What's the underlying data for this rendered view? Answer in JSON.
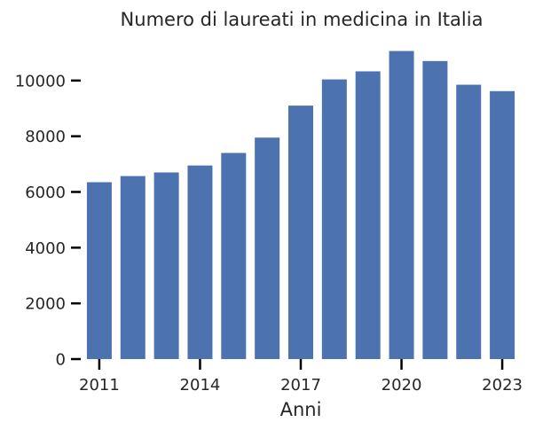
{
  "chart_data": {
    "type": "bar",
    "title": "Numero di laureati in medicina in Italia",
    "xlabel": "Anni",
    "ylabel": "",
    "categories": [
      "2011",
      "2012",
      "2013",
      "2014",
      "2015",
      "2016",
      "2017",
      "2018",
      "2019",
      "2020",
      "2021",
      "2022",
      "2023"
    ],
    "values": [
      6350,
      6570,
      6700,
      6950,
      7400,
      7950,
      9100,
      10040,
      10330,
      11060,
      10700,
      9850,
      9620
    ],
    "x_tick_labels": [
      "2011",
      "2014",
      "2017",
      "2020",
      "2023"
    ],
    "y_ticks": [
      0,
      2000,
      4000,
      6000,
      8000,
      10000
    ],
    "ylim": [
      0,
      11300
    ],
    "grid": false,
    "bar_color": "#4c72b0"
  }
}
